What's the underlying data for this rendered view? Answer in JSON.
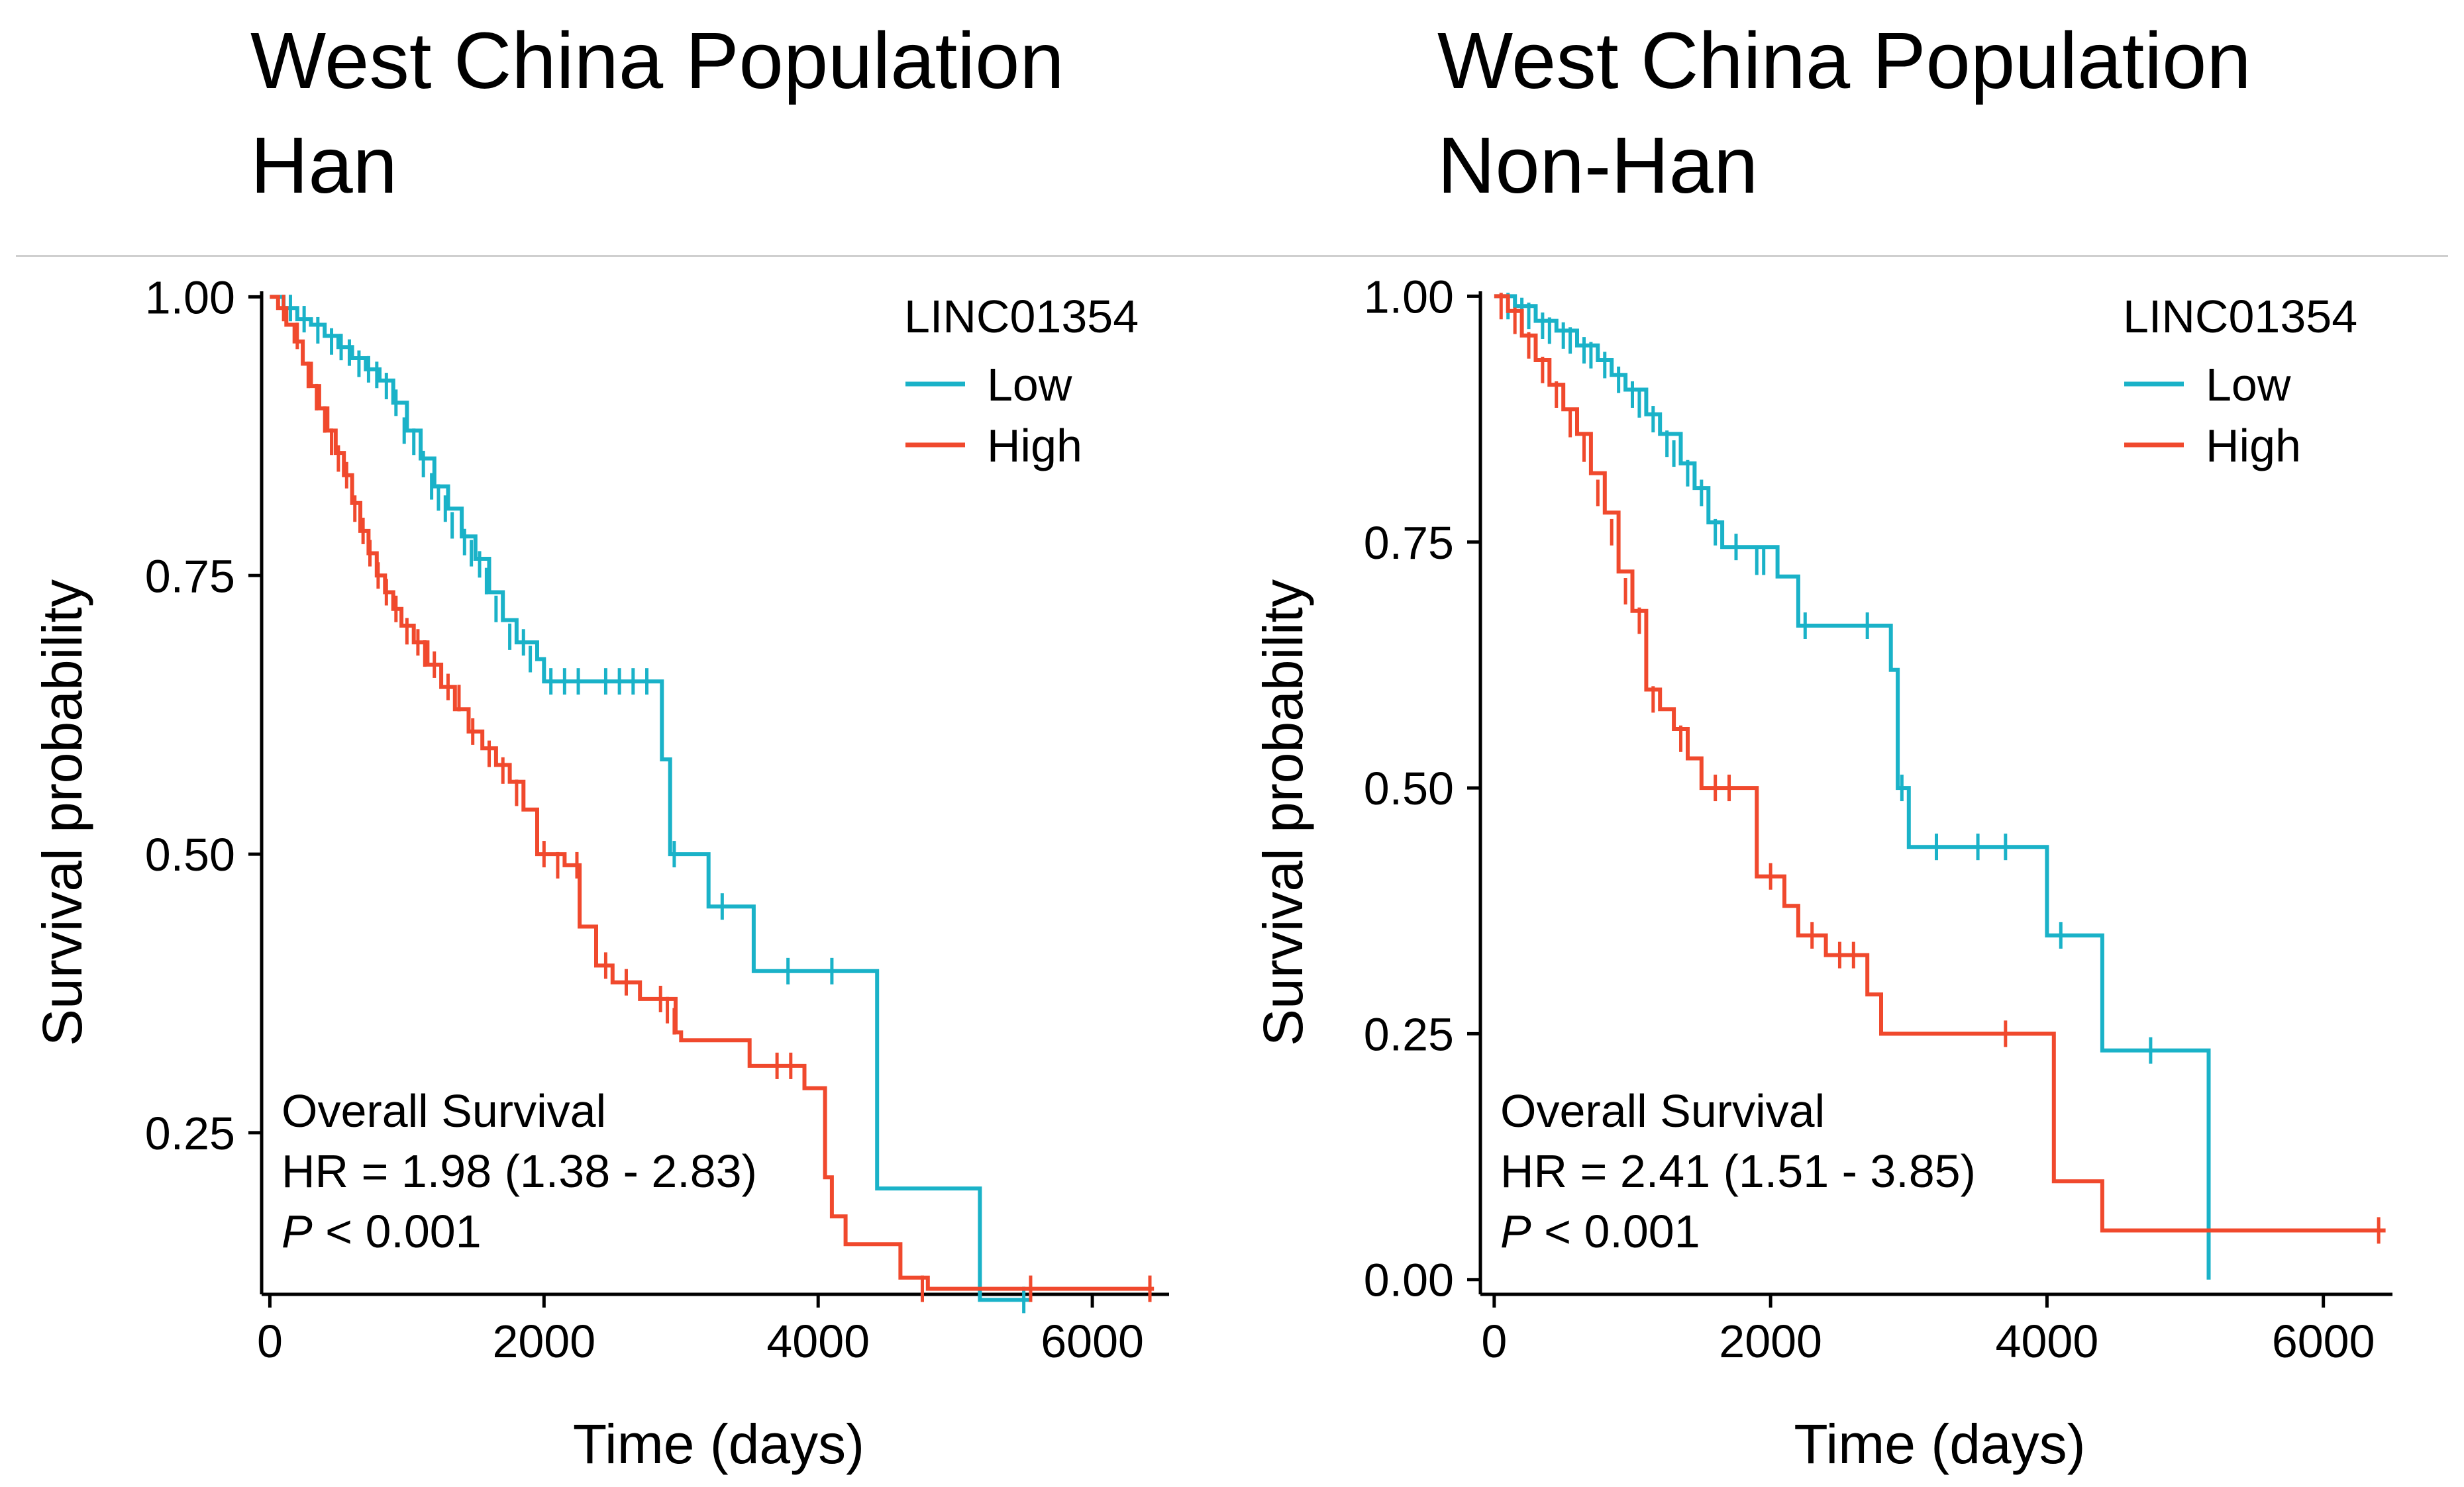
{
  "panels": [
    {
      "title_line1": "West China Population",
      "title_line2": "Han"
    },
    {
      "title_line1": "West China Population",
      "title_line2": "Non-Han"
    }
  ],
  "chart_data": [
    {
      "type": "line",
      "subtype": "kaplan-meier",
      "xlabel": "Time (days)",
      "ylabel": "Survival probability",
      "xlim": [
        -60,
        6560
      ],
      "ylim": [
        0.105,
        1.005
      ],
      "xticks": [
        0,
        2000,
        4000,
        6000
      ],
      "yticks": [
        0.25,
        0.5,
        0.75,
        1.0
      ],
      "ytick_labels": [
        "0.25",
        "0.50",
        "0.75",
        "1.00"
      ],
      "legend_title": "LINC01354",
      "legend_position": "top-right",
      "annotation": {
        "line1": "Overall Survival",
        "line2": "HR = 1.98 (1.38 -  2.83)",
        "p_italic": "P",
        "p_rest": " < 0.001"
      },
      "series": [
        {
          "name": "Low",
          "color": "#1ab2c8",
          "steps": [
            [
              0,
              1.0
            ],
            [
              100,
              0.99
            ],
            [
              200,
              0.98
            ],
            [
              300,
              0.975
            ],
            [
              400,
              0.965
            ],
            [
              500,
              0.955
            ],
            [
              600,
              0.945
            ],
            [
              700,
              0.935
            ],
            [
              800,
              0.925
            ],
            [
              900,
              0.905
            ],
            [
              1000,
              0.88
            ],
            [
              1100,
              0.855
            ],
            [
              1200,
              0.83
            ],
            [
              1300,
              0.81
            ],
            [
              1400,
              0.785
            ],
            [
              1500,
              0.765
            ],
            [
              1600,
              0.735
            ],
            [
              1700,
              0.71
            ],
            [
              1800,
              0.69
            ],
            [
              1950,
              0.675
            ],
            [
              2000,
              0.655
            ],
            [
              2800,
              0.655
            ],
            [
              2860,
              0.585
            ],
            [
              2920,
              0.5
            ],
            [
              3200,
              0.453
            ],
            [
              3530,
              0.395
            ],
            [
              4430,
              0.2
            ],
            [
              5180,
              0.1
            ],
            [
              5550,
              0.1
            ]
          ],
          "censors": [
            [
              150,
              0.99
            ],
            [
              250,
              0.98
            ],
            [
              350,
              0.97
            ],
            [
              450,
              0.96
            ],
            [
              520,
              0.955
            ],
            [
              580,
              0.95
            ],
            [
              650,
              0.94
            ],
            [
              720,
              0.935
            ],
            [
              780,
              0.93
            ],
            [
              850,
              0.92
            ],
            [
              920,
              0.905
            ],
            [
              980,
              0.88
            ],
            [
              1050,
              0.87
            ],
            [
              1120,
              0.85
            ],
            [
              1180,
              0.83
            ],
            [
              1230,
              0.82
            ],
            [
              1280,
              0.81
            ],
            [
              1330,
              0.795
            ],
            [
              1420,
              0.78
            ],
            [
              1470,
              0.77
            ],
            [
              1530,
              0.76
            ],
            [
              1580,
              0.745
            ],
            [
              1650,
              0.72
            ],
            [
              1750,
              0.695
            ],
            [
              1850,
              0.69
            ],
            [
              1900,
              0.675
            ],
            [
              2050,
              0.655
            ],
            [
              2150,
              0.655
            ],
            [
              2250,
              0.655
            ],
            [
              2450,
              0.655
            ],
            [
              2550,
              0.655
            ],
            [
              2650,
              0.655
            ],
            [
              2750,
              0.655
            ],
            [
              2950,
              0.5
            ],
            [
              3300,
              0.453
            ],
            [
              3780,
              0.395
            ],
            [
              4100,
              0.395
            ],
            [
              5500,
              0.1
            ]
          ]
        },
        {
          "name": "High",
          "color": "#f0492d",
          "steps": [
            [
              0,
              1.0
            ],
            [
              60,
              0.99
            ],
            [
              120,
              0.975
            ],
            [
              180,
              0.96
            ],
            [
              240,
              0.94
            ],
            [
              300,
              0.92
            ],
            [
              360,
              0.9
            ],
            [
              420,
              0.88
            ],
            [
              480,
              0.86
            ],
            [
              540,
              0.84
            ],
            [
              600,
              0.815
            ],
            [
              660,
              0.79
            ],
            [
              720,
              0.77
            ],
            [
              780,
              0.75
            ],
            [
              840,
              0.735
            ],
            [
              900,
              0.72
            ],
            [
              960,
              0.705
            ],
            [
              1050,
              0.69
            ],
            [
              1150,
              0.67
            ],
            [
              1250,
              0.65
            ],
            [
              1350,
              0.63
            ],
            [
              1450,
              0.61
            ],
            [
              1550,
              0.595
            ],
            [
              1650,
              0.58
            ],
            [
              1750,
              0.565
            ],
            [
              1850,
              0.54
            ],
            [
              1950,
              0.5
            ],
            [
              2150,
              0.49
            ],
            [
              2260,
              0.435
            ],
            [
              2380,
              0.4
            ],
            [
              2500,
              0.385
            ],
            [
              2700,
              0.37
            ],
            [
              2960,
              0.34
            ],
            [
              3000,
              0.333
            ],
            [
              3500,
              0.31
            ],
            [
              3900,
              0.29
            ],
            [
              4050,
              0.21
            ],
            [
              4100,
              0.175
            ],
            [
              4200,
              0.15
            ],
            [
              4600,
              0.12
            ],
            [
              4800,
              0.11
            ],
            [
              6450,
              0.11
            ]
          ],
          "censors": [
            [
              100,
              0.99
            ],
            [
              200,
              0.965
            ],
            [
              280,
              0.93
            ],
            [
              340,
              0.91
            ],
            [
              400,
              0.89
            ],
            [
              450,
              0.87
            ],
            [
              500,
              0.855
            ],
            [
              560,
              0.84
            ],
            [
              620,
              0.81
            ],
            [
              680,
              0.79
            ],
            [
              730,
              0.77
            ],
            [
              790,
              0.75
            ],
            [
              850,
              0.735
            ],
            [
              920,
              0.72
            ],
            [
              1000,
              0.7
            ],
            [
              1080,
              0.69
            ],
            [
              1130,
              0.68
            ],
            [
              1200,
              0.67
            ],
            [
              1300,
              0.65
            ],
            [
              1380,
              0.64
            ],
            [
              1480,
              0.61
            ],
            [
              1600,
              0.59
            ],
            [
              1700,
              0.575
            ],
            [
              1800,
              0.555
            ],
            [
              2000,
              0.5
            ],
            [
              2100,
              0.49
            ],
            [
              2240,
              0.49
            ],
            [
              2450,
              0.4
            ],
            [
              2600,
              0.385
            ],
            [
              2850,
              0.37
            ],
            [
              2900,
              0.36
            ],
            [
              2950,
              0.35
            ],
            [
              3700,
              0.31
            ],
            [
              3800,
              0.31
            ],
            [
              4760,
              0.11
            ],
            [
              5550,
              0.11
            ],
            [
              6420,
              0.11
            ]
          ]
        }
      ]
    },
    {
      "type": "line",
      "subtype": "kaplan-meier",
      "xlabel": "Time (days)",
      "ylabel": "Survival probability",
      "xlim": [
        -100,
        6500
      ],
      "ylim": [
        -0.015,
        1.005
      ],
      "xticks": [
        0,
        2000,
        4000,
        6000
      ],
      "yticks": [
        0.0,
        0.25,
        0.5,
        0.75,
        1.0
      ],
      "ytick_labels": [
        "0.00",
        "0.25",
        "0.50",
        "0.75",
        "1.00"
      ],
      "legend_title": "LINC01354",
      "legend_position": "top-right",
      "annotation": {
        "line1": "Overall Survival",
        "line2": "HR = 2.41 (1.51 -  3.85)",
        "p_italic": "P",
        "p_rest": " < 0.001"
      },
      "series": [
        {
          "name": "Low",
          "color": "#1ab2c8",
          "steps": [
            [
              0,
              1.0
            ],
            [
              150,
              0.99
            ],
            [
              300,
              0.975
            ],
            [
              450,
              0.965
            ],
            [
              600,
              0.95
            ],
            [
              750,
              0.935
            ],
            [
              850,
              0.92
            ],
            [
              950,
              0.905
            ],
            [
              1100,
              0.88
            ],
            [
              1200,
              0.86
            ],
            [
              1350,
              0.83
            ],
            [
              1450,
              0.805
            ],
            [
              1550,
              0.77
            ],
            [
              1650,
              0.745
            ],
            [
              2050,
              0.715
            ],
            [
              2200,
              0.665
            ],
            [
              2800,
              0.665
            ],
            [
              2870,
              0.62
            ],
            [
              2920,
              0.5
            ],
            [
              3000,
              0.44
            ],
            [
              3880,
              0.44
            ],
            [
              4000,
              0.35
            ],
            [
              4400,
              0.233
            ],
            [
              5170,
              0.0
            ]
          ],
          "censors": [
            [
              100,
              0.99
            ],
            [
              200,
              0.985
            ],
            [
              250,
              0.98
            ],
            [
              350,
              0.97
            ],
            [
              400,
              0.965
            ],
            [
              500,
              0.96
            ],
            [
              550,
              0.955
            ],
            [
              650,
              0.945
            ],
            [
              700,
              0.94
            ],
            [
              800,
              0.93
            ],
            [
              900,
              0.915
            ],
            [
              1000,
              0.9
            ],
            [
              1050,
              0.89
            ],
            [
              1150,
              0.875
            ],
            [
              1250,
              0.85
            ],
            [
              1300,
              0.84
            ],
            [
              1400,
              0.82
            ],
            [
              1500,
              0.8
            ],
            [
              1600,
              0.76
            ],
            [
              1750,
              0.745
            ],
            [
              1900,
              0.73
            ],
            [
              1950,
              0.73
            ],
            [
              2250,
              0.665
            ],
            [
              2700,
              0.665
            ],
            [
              2950,
              0.5
            ],
            [
              3200,
              0.44
            ],
            [
              3500,
              0.44
            ],
            [
              3700,
              0.44
            ],
            [
              4100,
              0.35
            ],
            [
              4750,
              0.233
            ]
          ]
        },
        {
          "name": "High",
          "color": "#f0492d",
          "steps": [
            [
              0,
              1.0
            ],
            [
              100,
              0.985
            ],
            [
              200,
              0.96
            ],
            [
              300,
              0.935
            ],
            [
              400,
              0.91
            ],
            [
              500,
              0.885
            ],
            [
              600,
              0.86
            ],
            [
              700,
              0.82
            ],
            [
              800,
              0.78
            ],
            [
              900,
              0.72
            ],
            [
              1000,
              0.68
            ],
            [
              1100,
              0.6
            ],
            [
              1200,
              0.58
            ],
            [
              1300,
              0.56
            ],
            [
              1400,
              0.53
            ],
            [
              1500,
              0.5
            ],
            [
              1900,
              0.41
            ],
            [
              2100,
              0.38
            ],
            [
              2200,
              0.35
            ],
            [
              2400,
              0.33
            ],
            [
              2700,
              0.29
            ],
            [
              2800,
              0.25
            ],
            [
              4050,
              0.1
            ],
            [
              4400,
              0.05
            ],
            [
              6450,
              0.05
            ]
          ],
          "censors": [
            [
              50,
              0.99
            ],
            [
              150,
              0.975
            ],
            [
              250,
              0.95
            ],
            [
              350,
              0.925
            ],
            [
              450,
              0.9
            ],
            [
              550,
              0.87
            ],
            [
              650,
              0.845
            ],
            [
              750,
              0.8
            ],
            [
              850,
              0.76
            ],
            [
              950,
              0.7
            ],
            [
              1050,
              0.67
            ],
            [
              1150,
              0.59
            ],
            [
              1350,
              0.55
            ],
            [
              1600,
              0.5
            ],
            [
              1700,
              0.5
            ],
            [
              2000,
              0.41
            ],
            [
              2300,
              0.35
            ],
            [
              2500,
              0.33
            ],
            [
              2600,
              0.33
            ],
            [
              3700,
              0.25
            ],
            [
              6400,
              0.05
            ]
          ]
        }
      ]
    }
  ]
}
